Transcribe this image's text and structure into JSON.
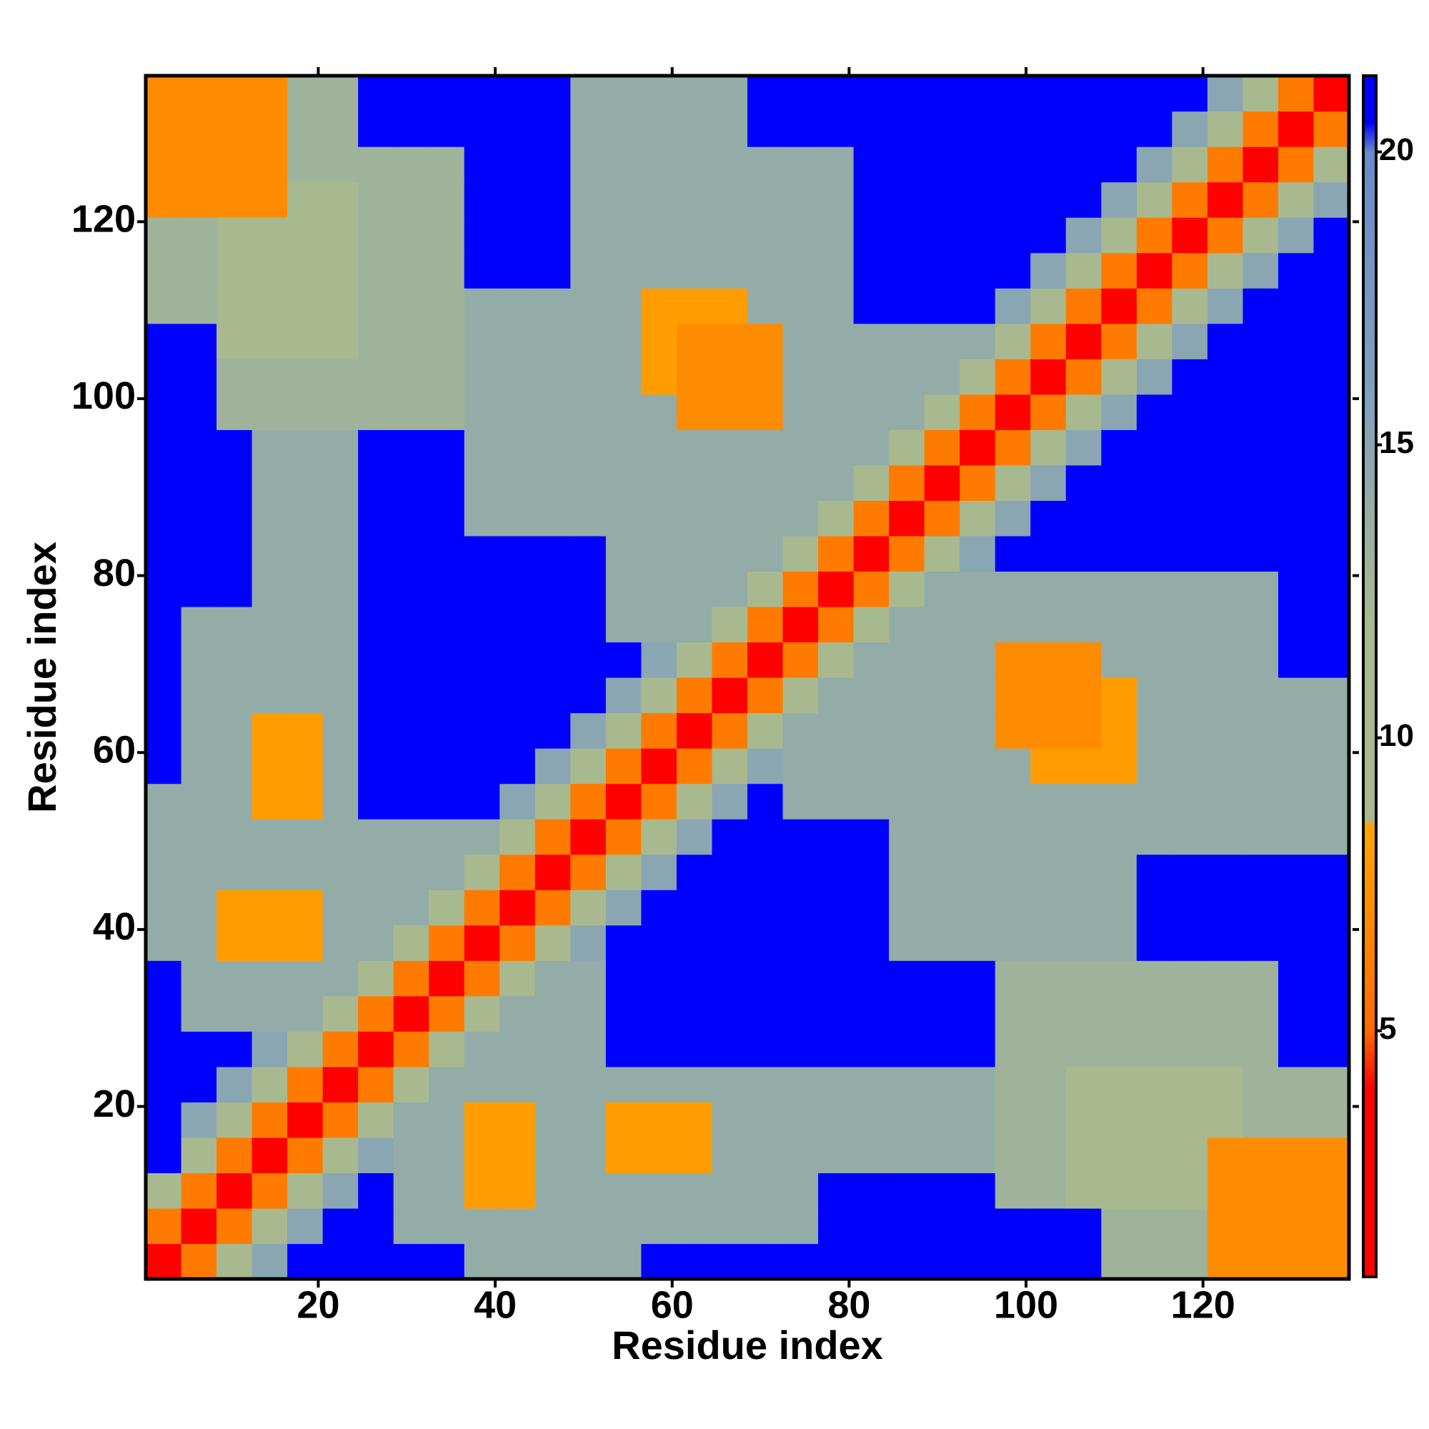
{
  "chart_data": {
    "type": "heatmap",
    "xlabel": "Residue index",
    "ylabel": "Residue index",
    "x": [
      2.5,
      6.5,
      10.5,
      14.5,
      18.5,
      22.5,
      26.5,
      30.5,
      34.5,
      38.5,
      42.5,
      46.5,
      50.5,
      54.5,
      58.5,
      62.5,
      66.5,
      70.5,
      74.5,
      78.5,
      82.5,
      86.5,
      90.5,
      94.5,
      98.5,
      102.5,
      106.5,
      110.5,
      114.5,
      118.5,
      122.5,
      126.5,
      130.5,
      134.5
    ],
    "y": [
      2.5,
      6.5,
      10.5,
      14.5,
      18.5,
      22.5,
      26.5,
      30.5,
      34.5,
      38.5,
      42.5,
      46.5,
      50.5,
      54.5,
      58.5,
      62.5,
      66.5,
      70.5,
      74.5,
      78.5,
      82.5,
      86.5,
      90.5,
      94.5,
      98.5,
      102.5,
      106.5,
      110.5,
      114.5,
      118.5,
      122.5,
      126.5,
      130.5,
      134.5
    ],
    "z": [
      [
        3,
        6,
        11,
        15,
        21,
        21,
        21,
        21,
        21,
        14,
        14,
        14,
        14,
        14,
        21,
        21,
        21,
        21,
        21,
        21,
        21,
        21,
        21,
        21,
        21,
        21,
        21,
        13,
        13,
        13,
        7,
        7,
        7,
        7
      ],
      [
        6,
        3,
        6,
        11,
        15,
        21,
        21,
        14,
        14,
        14,
        14,
        14,
        14,
        14,
        14,
        14,
        14,
        14,
        14,
        21,
        21,
        21,
        21,
        21,
        21,
        21,
        21,
        13,
        13,
        13,
        7,
        7,
        7,
        7
      ],
      [
        11,
        6,
        3,
        6,
        11,
        15,
        21,
        14,
        14,
        8,
        8,
        14,
        14,
        14,
        14,
        14,
        14,
        14,
        14,
        21,
        21,
        21,
        21,
        21,
        13,
        13,
        12,
        12,
        12,
        12,
        7,
        7,
        7,
        7
      ],
      [
        21,
        11,
        6,
        3,
        6,
        11,
        15,
        14,
        14,
        8,
        8,
        14,
        14,
        8,
        8,
        8,
        14,
        14,
        14,
        14,
        14,
        14,
        14,
        14,
        13,
        13,
        12,
        12,
        12,
        12,
        7,
        7,
        7,
        7
      ],
      [
        21,
        15,
        11,
        6,
        3,
        6,
        11,
        14,
        14,
        8,
        8,
        14,
        14,
        8,
        8,
        8,
        14,
        14,
        14,
        14,
        14,
        14,
        14,
        14,
        13,
        13,
        12,
        12,
        12,
        12,
        12,
        13,
        13,
        13
      ],
      [
        21,
        21,
        15,
        11,
        6,
        3,
        6,
        11,
        14,
        14,
        14,
        14,
        14,
        14,
        14,
        14,
        14,
        14,
        14,
        14,
        14,
        14,
        14,
        14,
        13,
        13,
        12,
        12,
        12,
        12,
        12,
        13,
        13,
        13
      ],
      [
        21,
        21,
        21,
        15,
        11,
        6,
        3,
        6,
        11,
        14,
        14,
        14,
        14,
        21,
        21,
        21,
        21,
        21,
        21,
        21,
        21,
        21,
        21,
        21,
        13,
        13,
        13,
        13,
        13,
        13,
        13,
        13,
        21,
        21
      ],
      [
        21,
        14,
        14,
        14,
        14,
        11,
        6,
        3,
        6,
        11,
        14,
        14,
        14,
        21,
        21,
        21,
        21,
        21,
        21,
        21,
        21,
        21,
        21,
        21,
        13,
        13,
        13,
        13,
        13,
        13,
        13,
        13,
        21,
        21
      ],
      [
        21,
        14,
        14,
        14,
        14,
        14,
        11,
        6,
        3,
        6,
        11,
        14,
        14,
        21,
        21,
        21,
        21,
        21,
        21,
        21,
        21,
        21,
        21,
        21,
        13,
        13,
        13,
        13,
        13,
        13,
        13,
        13,
        21,
        21
      ],
      [
        14,
        14,
        8,
        8,
        8,
        14,
        14,
        11,
        6,
        3,
        6,
        11,
        15,
        21,
        21,
        21,
        21,
        21,
        21,
        21,
        21,
        14,
        14,
        14,
        14,
        14,
        14,
        14,
        21,
        21,
        21,
        21,
        21,
        21
      ],
      [
        14,
        14,
        8,
        8,
        8,
        14,
        14,
        14,
        11,
        6,
        3,
        6,
        11,
        15,
        21,
        21,
        21,
        21,
        21,
        21,
        21,
        14,
        14,
        14,
        14,
        14,
        14,
        14,
        21,
        21,
        21,
        21,
        21,
        21
      ],
      [
        14,
        14,
        14,
        14,
        14,
        14,
        14,
        14,
        14,
        11,
        6,
        3,
        6,
        11,
        15,
        21,
        21,
        21,
        21,
        21,
        21,
        14,
        14,
        14,
        14,
        14,
        14,
        14,
        21,
        21,
        21,
        21,
        21,
        21
      ],
      [
        14,
        14,
        14,
        14,
        14,
        14,
        14,
        14,
        14,
        14,
        11,
        6,
        3,
        6,
        11,
        15,
        21,
        21,
        21,
        21,
        21,
        14,
        14,
        14,
        14,
        14,
        14,
        14,
        14,
        14,
        14,
        14,
        14,
        14
      ],
      [
        14,
        14,
        14,
        8,
        8,
        14,
        21,
        21,
        21,
        21,
        15,
        11,
        6,
        3,
        6,
        11,
        15,
        21,
        14,
        14,
        14,
        14,
        14,
        14,
        14,
        14,
        14,
        14,
        14,
        14,
        14,
        14,
        14,
        14
      ],
      [
        21,
        14,
        14,
        8,
        8,
        14,
        21,
        21,
        21,
        21,
        21,
        15,
        11,
        6,
        3,
        6,
        11,
        15,
        14,
        14,
        14,
        14,
        14,
        14,
        14,
        8,
        8,
        8,
        14,
        14,
        14,
        14,
        14,
        14
      ],
      [
        21,
        14,
        14,
        8,
        8,
        14,
        21,
        21,
        21,
        21,
        21,
        21,
        15,
        11,
        6,
        3,
        6,
        11,
        14,
        14,
        14,
        14,
        14,
        14,
        7,
        7,
        7,
        8,
        14,
        14,
        14,
        14,
        14,
        14
      ],
      [
        21,
        14,
        14,
        14,
        14,
        14,
        21,
        21,
        21,
        21,
        21,
        21,
        21,
        15,
        11,
        6,
        3,
        6,
        11,
        14,
        14,
        14,
        14,
        14,
        7,
        7,
        7,
        8,
        14,
        14,
        14,
        14,
        14,
        14
      ],
      [
        21,
        14,
        14,
        14,
        14,
        14,
        21,
        21,
        21,
        21,
        21,
        21,
        21,
        21,
        15,
        11,
        6,
        3,
        6,
        11,
        14,
        14,
        14,
        14,
        7,
        7,
        7,
        14,
        14,
        14,
        14,
        14,
        21,
        21
      ],
      [
        21,
        14,
        14,
        14,
        14,
        14,
        21,
        21,
        21,
        21,
        21,
        21,
        21,
        14,
        14,
        14,
        11,
        6,
        3,
        6,
        11,
        14,
        14,
        14,
        14,
        14,
        14,
        14,
        14,
        14,
        14,
        14,
        21,
        21
      ],
      [
        21,
        21,
        21,
        14,
        14,
        14,
        21,
        21,
        21,
        21,
        21,
        21,
        21,
        14,
        14,
        14,
        14,
        11,
        6,
        3,
        6,
        11,
        14,
        14,
        14,
        14,
        14,
        14,
        14,
        14,
        14,
        14,
        21,
        21
      ],
      [
        21,
        21,
        21,
        14,
        14,
        14,
        21,
        21,
        21,
        21,
        21,
        21,
        21,
        14,
        14,
        14,
        14,
        14,
        11,
        6,
        3,
        6,
        11,
        15,
        21,
        21,
        21,
        21,
        21,
        21,
        21,
        21,
        21,
        21
      ],
      [
        21,
        21,
        21,
        14,
        14,
        14,
        21,
        21,
        21,
        14,
        14,
        14,
        14,
        14,
        14,
        14,
        14,
        14,
        14,
        11,
        6,
        3,
        6,
        11,
        15,
        21,
        21,
        21,
        21,
        21,
        21,
        21,
        21,
        21
      ],
      [
        21,
        21,
        21,
        14,
        14,
        14,
        21,
        21,
        21,
        14,
        14,
        14,
        14,
        14,
        14,
        14,
        14,
        14,
        14,
        14,
        11,
        6,
        3,
        6,
        11,
        15,
        21,
        21,
        21,
        21,
        21,
        21,
        21,
        21
      ],
      [
        21,
        21,
        21,
        14,
        14,
        14,
        21,
        21,
        21,
        14,
        14,
        14,
        14,
        14,
        14,
        14,
        14,
        14,
        14,
        14,
        14,
        11,
        6,
        3,
        6,
        11,
        15,
        21,
        21,
        21,
        21,
        21,
        21,
        21
      ],
      [
        21,
        21,
        13,
        13,
        13,
        13,
        13,
        13,
        13,
        14,
        14,
        14,
        14,
        14,
        14,
        7,
        7,
        7,
        14,
        14,
        14,
        14,
        11,
        6,
        3,
        6,
        11,
        15,
        21,
        21,
        21,
        21,
        21,
        21
      ],
      [
        21,
        21,
        13,
        13,
        13,
        13,
        13,
        13,
        13,
        14,
        14,
        14,
        14,
        14,
        8,
        7,
        7,
        7,
        14,
        14,
        14,
        14,
        14,
        11,
        6,
        3,
        6,
        11,
        15,
        21,
        21,
        21,
        21,
        21
      ],
      [
        21,
        21,
        12,
        12,
        12,
        12,
        13,
        13,
        13,
        14,
        14,
        14,
        14,
        14,
        8,
        7,
        7,
        7,
        14,
        14,
        14,
        14,
        14,
        14,
        11,
        6,
        3,
        6,
        11,
        15,
        21,
        21,
        21,
        21
      ],
      [
        13,
        13,
        12,
        12,
        12,
        12,
        13,
        13,
        13,
        14,
        14,
        14,
        14,
        14,
        8,
        8,
        8,
        14,
        14,
        14,
        21,
        21,
        21,
        21,
        15,
        11,
        6,
        3,
        6,
        11,
        15,
        21,
        21,
        21
      ],
      [
        13,
        13,
        12,
        12,
        12,
        12,
        13,
        13,
        13,
        21,
        21,
        21,
        14,
        14,
        14,
        14,
        14,
        14,
        14,
        14,
        21,
        21,
        21,
        21,
        21,
        15,
        11,
        6,
        3,
        6,
        11,
        15,
        21,
        21
      ],
      [
        13,
        13,
        12,
        12,
        12,
        12,
        13,
        13,
        13,
        21,
        21,
        21,
        14,
        14,
        14,
        14,
        14,
        14,
        14,
        14,
        21,
        21,
        21,
        21,
        21,
        21,
        15,
        11,
        6,
        3,
        6,
        11,
        15,
        21
      ],
      [
        7,
        7,
        7,
        7,
        12,
        12,
        13,
        13,
        13,
        21,
        21,
        21,
        14,
        14,
        14,
        14,
        14,
        14,
        14,
        14,
        21,
        21,
        21,
        21,
        21,
        21,
        21,
        15,
        11,
        6,
        3,
        6,
        11,
        15
      ],
      [
        7,
        7,
        7,
        7,
        13,
        13,
        13,
        13,
        13,
        21,
        21,
        21,
        14,
        14,
        14,
        14,
        14,
        14,
        14,
        14,
        21,
        21,
        21,
        21,
        21,
        21,
        21,
        21,
        15,
        11,
        6,
        3,
        6,
        11
      ],
      [
        7,
        7,
        7,
        7,
        13,
        13,
        21,
        21,
        21,
        21,
        21,
        21,
        14,
        14,
        14,
        14,
        14,
        21,
        21,
        21,
        21,
        21,
        21,
        21,
        21,
        21,
        21,
        21,
        21,
        15,
        11,
        6,
        3,
        6
      ],
      [
        7,
        7,
        7,
        7,
        13,
        13,
        21,
        21,
        21,
        21,
        21,
        21,
        14,
        14,
        14,
        14,
        14,
        21,
        21,
        21,
        21,
        21,
        21,
        21,
        21,
        21,
        21,
        21,
        21,
        21,
        15,
        11,
        6,
        3
      ]
    ],
    "xlim": [
      0.5,
      136.5
    ],
    "ylim": [
      0.5,
      136.5
    ],
    "xticks": [
      20,
      40,
      60,
      80,
      100,
      120
    ],
    "yticks": [
      20,
      40,
      60,
      80,
      100,
      120
    ],
    "zlim": [
      0.8,
      21.3
    ],
    "zticks": [
      5,
      10,
      15,
      20
    ],
    "colorscale": [
      [
        0.8,
        "#ff0000"
      ],
      [
        4,
        "#ff0000"
      ],
      [
        5,
        "#ff6a00"
      ],
      [
        8.5,
        "#ffa500"
      ],
      [
        8.6,
        "#a9b98f"
      ],
      [
        12,
        "#a9b98f"
      ],
      [
        16,
        "#7f9fbf"
      ],
      [
        20,
        "#6a8ac8"
      ],
      [
        20.5,
        "#0000ff"
      ],
      [
        21.3,
        "#0000ff"
      ]
    ]
  }
}
